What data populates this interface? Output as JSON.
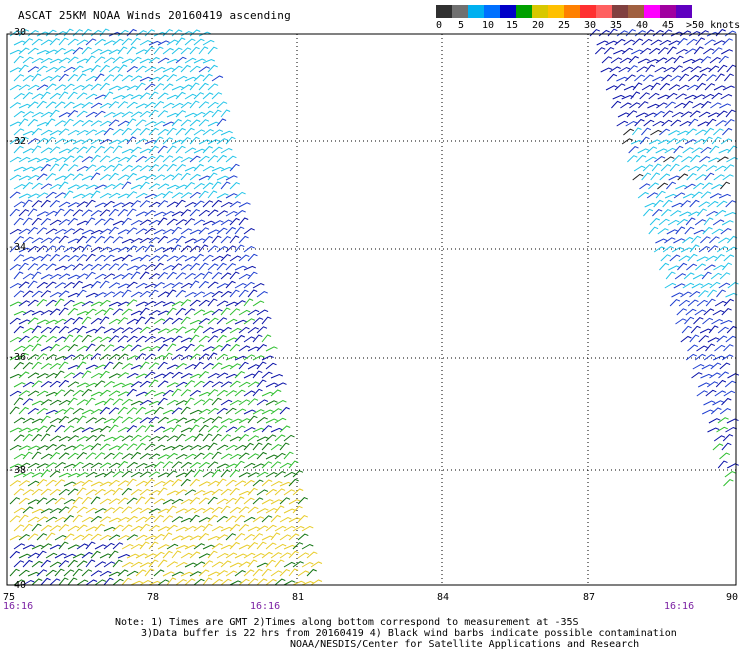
{
  "title": "ASCAT 25KM NOAA Winds 20160419 ascending",
  "legend": {
    "colors": [
      "#303030",
      "#707070",
      "#00b0f0",
      "#0070ff",
      "#0000c8",
      "#00a000",
      "#d8c800",
      "#ffc000",
      "#ff8000",
      "#ff3030",
      "#ff6060",
      "#804040",
      "#a06040",
      "#ff00ff",
      "#a000a0",
      "#6000c0"
    ],
    "labels": [
      "0",
      "5",
      "10",
      "15",
      "20",
      "25",
      "30",
      "35",
      "40",
      "45",
      ">50 knots"
    ]
  },
  "axes": {
    "lat_ticks": [
      "-30",
      "-32",
      "-34",
      "-36",
      "-38",
      "-40"
    ],
    "lon_ticks": [
      "75",
      "78",
      "81",
      "84",
      "87",
      "90"
    ]
  },
  "times": [
    "16:16",
    "16:16",
    "16:16"
  ],
  "notes": [
    "Note: 1) Times are GMT 2)Times along bottom correspond to measurement at -35S",
    "3)Data buffer is 22 hrs from 20160419 4) Black wind barbs indicate possible contamination",
    "NOAA/NESDIS/Center for Satellite Applications and Research"
  ],
  "swath_colors": {
    "light_cyan": "#22c4e8",
    "blue": "#1f3fd0",
    "navy": "#0a12a8",
    "green": "#2fbf2f",
    "dark_green": "#127512",
    "yellow": "#e8cc2a",
    "black": "#202020"
  }
}
